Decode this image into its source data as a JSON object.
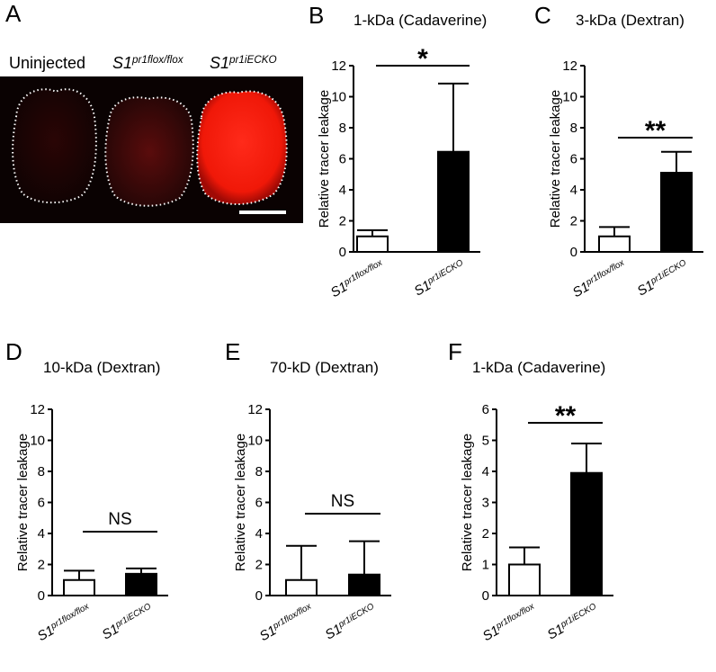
{
  "panel_a": {
    "panel": "A",
    "labels": [
      "Uninjected",
      "S1pr1flox/flox",
      "S1pr1iECKO"
    ]
  },
  "chart_data": [
    {
      "type": "bar",
      "panel": "B",
      "title": "1-kDa (Cadaverine)",
      "ylabel": "Relative tracer leakage",
      "categories": [
        "S1pr1flox/flox",
        "S1pr1iECKO"
      ],
      "values": [
        1,
        6.45
      ],
      "errors": [
        0.4,
        4.4
      ],
      "colors": [
        "#ffffff",
        "#000000"
      ],
      "ylim": [
        0,
        12
      ],
      "yticks": [
        0,
        2,
        4,
        6,
        8,
        10,
        12
      ],
      "annotation": "*"
    },
    {
      "type": "bar",
      "panel": "C",
      "title": "3-kDa (Dextran)",
      "ylabel": "Relative tracer leakage",
      "categories": [
        "S1pr1flox/flox",
        "S1pr1iECKO"
      ],
      "values": [
        1,
        5.1
      ],
      "errors": [
        0.6,
        1.35
      ],
      "colors": [
        "#ffffff",
        "#000000"
      ],
      "ylim": [
        0,
        12
      ],
      "yticks": [
        0,
        2,
        4,
        6,
        8,
        10,
        12
      ],
      "annotation": "**"
    },
    {
      "type": "bar",
      "panel": "D",
      "title": "10-kDa (Dextran)",
      "ylabel": "Relative tracer leakage",
      "categories": [
        "S1pr1flox/flox",
        "S1pr1iECKO"
      ],
      "values": [
        1,
        1.4
      ],
      "errors": [
        0.6,
        0.35
      ],
      "colors": [
        "#ffffff",
        "#000000"
      ],
      "ylim": [
        0,
        12
      ],
      "yticks": [
        0,
        2,
        4,
        6,
        8,
        10,
        12
      ],
      "annotation": "NS"
    },
    {
      "type": "bar",
      "panel": "E",
      "title": "70-kD (Dextran)",
      "ylabel": "Relative tracer leakage",
      "categories": [
        "S1pr1flox/flox",
        "S1pr1iECKO"
      ],
      "values": [
        1,
        1.35
      ],
      "errors": [
        2.2,
        2.15
      ],
      "colors": [
        "#ffffff",
        "#000000"
      ],
      "ylim": [
        0,
        12
      ],
      "yticks": [
        0,
        2,
        4,
        6,
        8,
        10,
        12
      ],
      "annotation": "NS"
    },
    {
      "type": "bar",
      "panel": "F",
      "title": "1-kDa (Cadaverine)",
      "ylabel": "Relative tracer leakage",
      "categories": [
        "S1pr1flox/flox",
        "S1pr1iECKO"
      ],
      "values": [
        1,
        3.95
      ],
      "errors": [
        0.55,
        0.95
      ],
      "colors": [
        "#ffffff",
        "#000000"
      ],
      "ylim": [
        0,
        6
      ],
      "yticks": [
        0,
        1,
        2,
        3,
        4,
        5,
        6
      ],
      "annotation": "**"
    }
  ]
}
